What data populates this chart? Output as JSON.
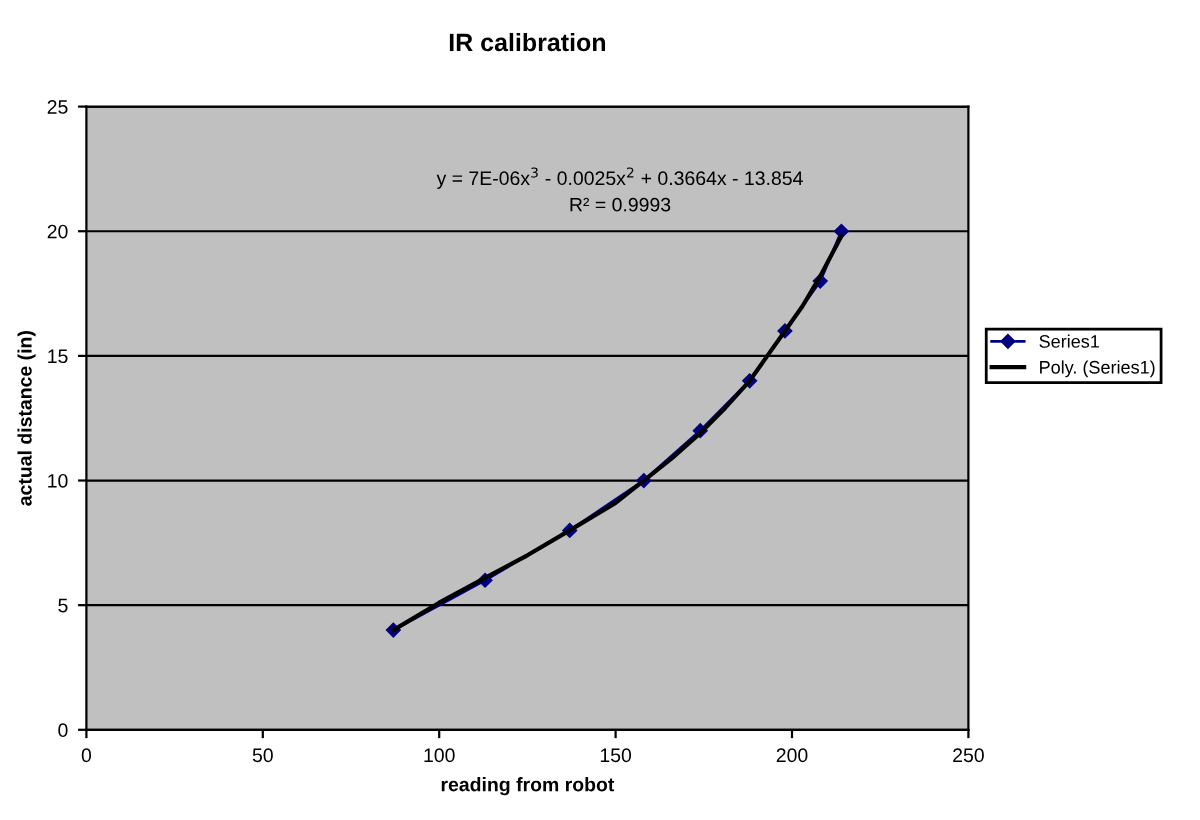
{
  "chart_data": {
    "type": "line",
    "title": "IR calibration",
    "xlabel": "reading from robot",
    "ylabel": "actual distance (in)",
    "annotations": [
      "y = 7E-06x$^{3}$ - 0.0025x$^{2}$ + 0.3664x - 13.854",
      "R² = 0.9993"
    ],
    "xlim": [
      0,
      250
    ],
    "xticks": [
      0,
      50,
      100,
      150,
      200,
      250
    ],
    "ylim": [
      0,
      25
    ],
    "yticks": [
      0,
      5,
      10,
      15,
      20,
      25
    ],
    "grid": "y",
    "legend": "right",
    "series": [
      {
        "name": "Series1",
        "color": "#000080",
        "marker": "diamond",
        "x": [
          87,
          113,
          137,
          158,
          174,
          188,
          198,
          208,
          214
        ],
        "values": [
          4,
          6,
          8,
          10,
          12,
          14,
          16,
          18,
          20
        ]
      },
      {
        "name": "Poly. (Series1)",
        "color": "#000000",
        "marker": "none",
        "x": [
          87,
          100,
          113,
          125,
          137,
          150,
          158,
          166,
          174,
          181,
          188,
          193,
          198,
          203,
          208,
          214
        ],
        "values": [
          4,
          5.1,
          6.1,
          7.0,
          8.0,
          9.1,
          10,
          10.9,
          11.9,
          12.9,
          14,
          15,
          16,
          17,
          18.2,
          19.8
        ]
      }
    ]
  }
}
